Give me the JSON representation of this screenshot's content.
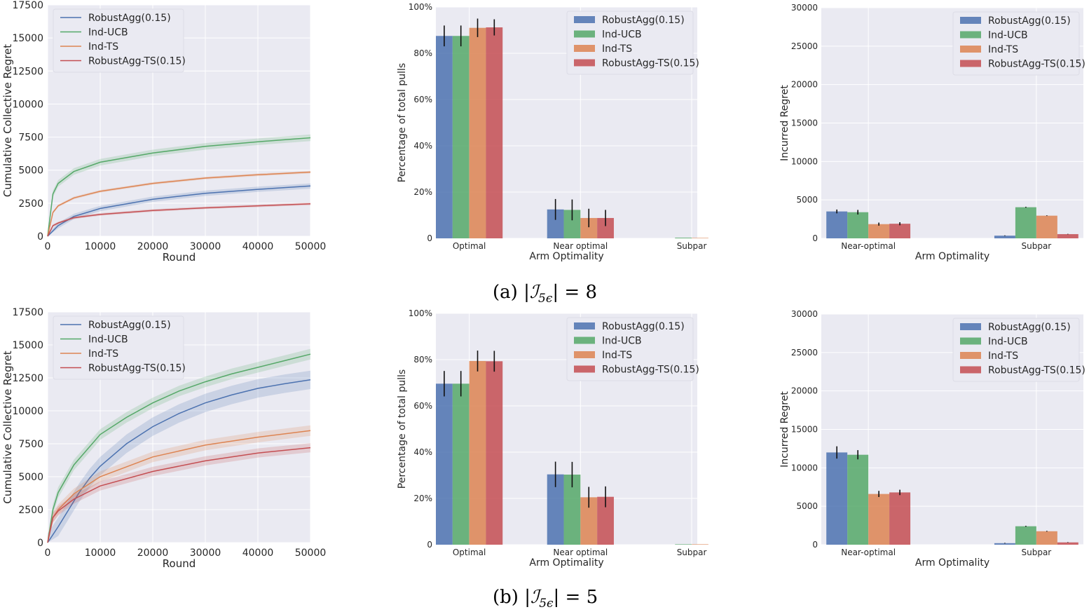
{
  "colors": {
    "RobustAgg(0.15)": "#4c72b0",
    "Ind-UCB": "#55a868",
    "Ind-TS": "#dd8452",
    "RobustAgg-TS(0.15)": "#c44e52",
    "plot_bg": "#eaeaf2",
    "grid": "#ffffff"
  },
  "captions": {
    "a": {
      "prefix": "(a) ",
      "formula_text": "|ℐ",
      "sub": "5ϵ",
      "rest": "| = 8"
    },
    "b": {
      "prefix": "(b) ",
      "formula_text": "|ℐ",
      "sub": "5ϵ",
      "rest": "| = 5"
    }
  },
  "chart_data": [
    {
      "id": "a-regret",
      "row": "a",
      "type": "line",
      "xlabel": "Round",
      "ylabel": "Cumulative Collective Regret",
      "xlim": [
        0,
        50000
      ],
      "ylim": [
        0,
        17500
      ],
      "xticks": [
        "0",
        "10000",
        "20000",
        "30000",
        "40000",
        "50000"
      ],
      "yticks": [
        "0",
        "2500",
        "5000",
        "7500",
        "10000",
        "12500",
        "15000",
        "17500"
      ],
      "legend_loc": "upper left",
      "series": [
        {
          "name": "RobustAgg(0.15)",
          "band": 200,
          "x": [
            0,
            2000,
            5000,
            10000,
            20000,
            30000,
            40000,
            50000
          ],
          "y": [
            0,
            800,
            1500,
            2100,
            2800,
            3250,
            3550,
            3800
          ]
        },
        {
          "name": "Ind-UCB",
          "band": 250,
          "x": [
            0,
            1000,
            2000,
            5000,
            10000,
            20000,
            30000,
            40000,
            50000
          ],
          "y": [
            0,
            3200,
            4000,
            4900,
            5600,
            6300,
            6800,
            7150,
            7450
          ]
        },
        {
          "name": "Ind-TS",
          "band": 100,
          "x": [
            0,
            1000,
            2000,
            5000,
            10000,
            20000,
            30000,
            40000,
            50000
          ],
          "y": [
            0,
            1800,
            2300,
            2900,
            3400,
            4000,
            4400,
            4650,
            4850
          ]
        },
        {
          "name": "RobustAgg-TS(0.15)",
          "band": 100,
          "x": [
            0,
            1000,
            2000,
            5000,
            10000,
            20000,
            30000,
            40000,
            50000
          ],
          "y": [
            0,
            800,
            1000,
            1400,
            1650,
            1950,
            2150,
            2300,
            2450
          ]
        }
      ]
    },
    {
      "id": "a-pulls",
      "row": "a",
      "type": "bar",
      "xlabel": "Arm Optimality",
      "ylabel": "Percentage of total pulls",
      "ylim": [
        0,
        100
      ],
      "yticks": [
        "0",
        "20%",
        "40%",
        "60%",
        "80%",
        "100%"
      ],
      "categories": [
        "Optimal",
        "Near optimal",
        "Subpar"
      ],
      "legend_loc": "upper right",
      "series": [
        {
          "name": "RobustAgg(0.15)",
          "values": [
            87.5,
            12.5,
            0
          ],
          "err": [
            4.5,
            4.5,
            0
          ]
        },
        {
          "name": "Ind-UCB",
          "values": [
            87.5,
            12.3,
            0.3
          ],
          "err": [
            4.5,
            4.5,
            0
          ]
        },
        {
          "name": "Ind-TS",
          "values": [
            91,
            8.8,
            0.2
          ],
          "err": [
            4,
            4,
            0
          ]
        },
        {
          "name": "RobustAgg-TS(0.15)",
          "values": [
            91.2,
            8.8,
            0
          ],
          "err": [
            3.5,
            3.5,
            0
          ]
        }
      ]
    },
    {
      "id": "a-incurred",
      "row": "a",
      "type": "bar",
      "xlabel": "Arm Optimality",
      "ylabel": "Incurred Regret",
      "ylim": [
        0,
        30000
      ],
      "yticks": [
        "0",
        "5000",
        "10000",
        "15000",
        "20000",
        "25000",
        "30000"
      ],
      "categories": [
        "Near-optimal",
        "Subpar"
      ],
      "legend_loc": "upper right",
      "series": [
        {
          "name": "RobustAgg(0.15)",
          "values": [
            3500,
            350
          ],
          "err": [
            250,
            40
          ]
        },
        {
          "name": "Ind-UCB",
          "values": [
            3400,
            4050
          ],
          "err": [
            300,
            60
          ]
        },
        {
          "name": "Ind-TS",
          "values": [
            1850,
            2950
          ],
          "err": [
            200,
            40
          ]
        },
        {
          "name": "RobustAgg-TS(0.15)",
          "values": [
            1900,
            550
          ],
          "err": [
            200,
            30
          ]
        }
      ]
    },
    {
      "id": "b-regret",
      "row": "b",
      "type": "line",
      "xlabel": "Round",
      "ylabel": "Cumulative Collective Regret",
      "xlim": [
        0,
        50000
      ],
      "ylim": [
        0,
        17500
      ],
      "xticks": [
        "0",
        "10000",
        "20000",
        "30000",
        "40000",
        "50000"
      ],
      "yticks": [
        "0",
        "2500",
        "5000",
        "7500",
        "10000",
        "12500",
        "15000",
        "17500"
      ],
      "legend_loc": "upper left",
      "series": [
        {
          "name": "RobustAgg(0.15)",
          "band": 700,
          "x": [
            0,
            2000,
            4000,
            6000,
            8000,
            10000,
            15000,
            20000,
            25000,
            30000,
            35000,
            40000,
            45000,
            50000
          ],
          "y": [
            0,
            1200,
            2500,
            3800,
            4900,
            5800,
            7500,
            8800,
            9800,
            10600,
            11200,
            11700,
            12050,
            12350
          ]
        },
        {
          "name": "Ind-UCB",
          "band": 400,
          "x": [
            0,
            1000,
            2000,
            5000,
            10000,
            15000,
            20000,
            25000,
            30000,
            35000,
            40000,
            45000,
            50000
          ],
          "y": [
            0,
            2500,
            3800,
            5900,
            8200,
            9500,
            10600,
            11500,
            12200,
            12800,
            13300,
            13800,
            14300
          ]
        },
        {
          "name": "Ind-TS",
          "band": 400,
          "x": [
            0,
            1000,
            2000,
            5000,
            10000,
            20000,
            30000,
            40000,
            50000
          ],
          "y": [
            0,
            1900,
            2500,
            3700,
            5000,
            6500,
            7400,
            8000,
            8500
          ]
        },
        {
          "name": "RobustAgg-TS(0.15)",
          "band": 350,
          "x": [
            0,
            1000,
            2000,
            5000,
            10000,
            20000,
            30000,
            40000,
            50000
          ],
          "y": [
            0,
            1900,
            2400,
            3300,
            4300,
            5400,
            6200,
            6800,
            7200
          ]
        }
      ]
    },
    {
      "id": "b-pulls",
      "row": "b",
      "type": "bar",
      "xlabel": "Arm Optimality",
      "ylabel": "Percentage of total pulls",
      "ylim": [
        0,
        100
      ],
      "yticks": [
        "0",
        "20%",
        "40%",
        "60%",
        "80%",
        "100%"
      ],
      "categories": [
        "Optimal",
        "Near optimal",
        "Subpar"
      ],
      "legend_loc": "upper right",
      "series": [
        {
          "name": "RobustAgg(0.15)",
          "values": [
            69.6,
            30.4,
            0
          ],
          "err": [
            5.5,
            5.5,
            0
          ]
        },
        {
          "name": "Ind-UCB",
          "values": [
            69.6,
            30.3,
            0.2
          ],
          "err": [
            5.5,
            5.5,
            0
          ]
        },
        {
          "name": "Ind-TS",
          "values": [
            79.4,
            20.5,
            0.2
          ],
          "err": [
            4.5,
            4.5,
            0
          ]
        },
        {
          "name": "RobustAgg-TS(0.15)",
          "values": [
            79.3,
            20.7,
            0
          ],
          "err": [
            4.5,
            4.5,
            0
          ]
        }
      ]
    },
    {
      "id": "b-incurred",
      "row": "b",
      "type": "bar",
      "xlabel": "Arm Optimality",
      "ylabel": "Incurred Regret",
      "ylim": [
        0,
        30000
      ],
      "yticks": [
        "0",
        "5000",
        "10000",
        "15000",
        "20000",
        "25000",
        "30000"
      ],
      "categories": [
        "Near-optimal",
        "Subpar"
      ],
      "legend_loc": "upper right",
      "series": [
        {
          "name": "RobustAgg(0.15)",
          "values": [
            12000,
            200
          ],
          "err": [
            800,
            40
          ]
        },
        {
          "name": "Ind-UCB",
          "values": [
            11700,
            2400
          ],
          "err": [
            600,
            60
          ]
        },
        {
          "name": "Ind-TS",
          "values": [
            6600,
            1750
          ],
          "err": [
            400,
            50
          ]
        },
        {
          "name": "RobustAgg-TS(0.15)",
          "values": [
            6800,
            300
          ],
          "err": [
            350,
            30
          ]
        }
      ]
    }
  ]
}
